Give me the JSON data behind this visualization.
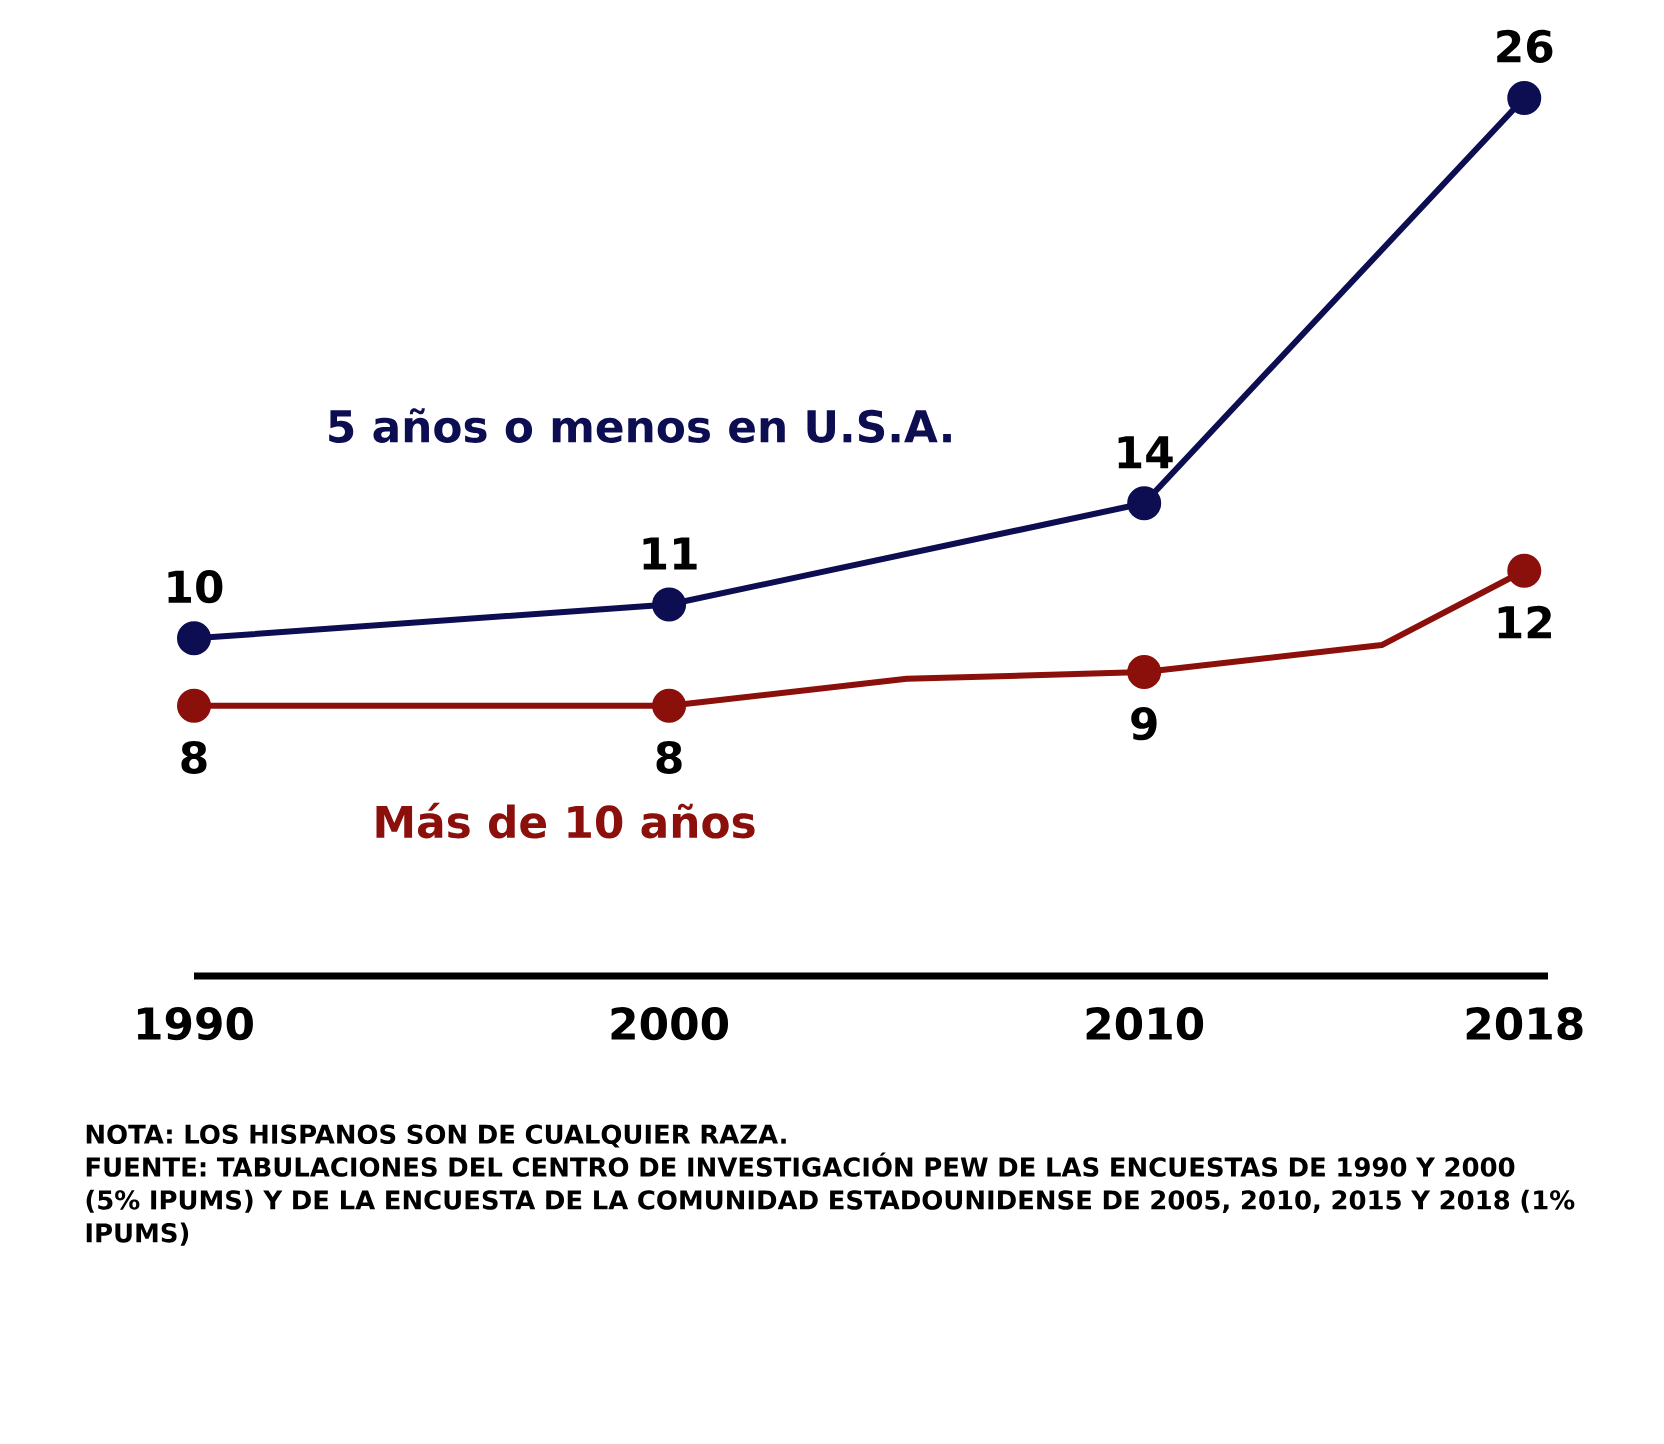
{
  "chart_data": {
    "type": "line",
    "marker": "circle",
    "xlim": [
      1990,
      2018.5
    ],
    "xticks": [
      1990,
      2000,
      2010,
      2018
    ],
    "series": [
      {
        "name": "5 años o menos en U.S.A.",
        "color": "#0d0d52",
        "x": [
          1990,
          2000,
          2010,
          2018
        ],
        "values": [
          10,
          11,
          14,
          26
        ],
        "value_labels": [
          "10",
          "11",
          "14",
          "26"
        ]
      },
      {
        "name": "Más de 10 años",
        "color": "#8b0f0a",
        "x": [
          1990,
          2000,
          2005,
          2010,
          2015,
          2018
        ],
        "values": [
          8,
          8,
          8.8,
          9,
          9.8,
          12
        ],
        "value_labels": [
          "8",
          "8",
          null,
          "9",
          null,
          "12"
        ]
      }
    ],
    "annotations": [
      "NOTA: LOS HISPANOS SON DE CUALQUIER RAZA.",
      "FUENTE: TABULACIONES DEL CENTRO DE INVESTIGACIÓN PEW DE LAS ENCUESTAS DE 1990 Y 2000 (5% IPUMS) Y DE LA ENCUESTA DE LA COMUNIDAD ESTADOUNIDENSE DE 2005, 2010, 2015 Y 2018 (1% IPUMS)"
    ]
  }
}
